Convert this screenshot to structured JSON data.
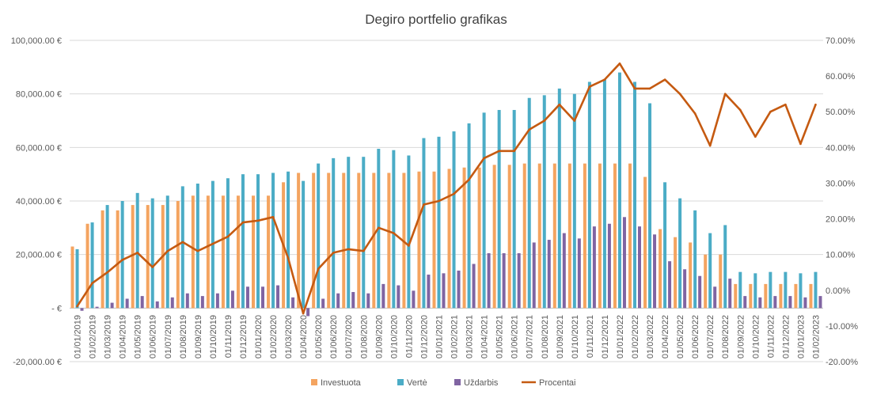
{
  "chart_data": {
    "type": "bar",
    "title": "Degiro portfelio grafikas",
    "categories": [
      "01/01/2019",
      "01/02/2019",
      "01/03/2019",
      "01/04/2019",
      "01/05/2019",
      "01/06/2019",
      "01/07/2019",
      "01/08/2019",
      "01/09/2019",
      "01/10/2019",
      "01/11/2019",
      "01/12/2019",
      "01/01/2020",
      "01/02/2020",
      "01/03/2020",
      "01/04/2020",
      "01/05/2020",
      "01/06/2020",
      "01/07/2020",
      "01/08/2020",
      "01/09/2020",
      "01/10/2020",
      "01/11/2020",
      "01/12/2020",
      "01/01/2021",
      "01/02/2021",
      "01/03/2021",
      "01/04/2021",
      "01/05/2021",
      "01/06/2021",
      "01/07/2021",
      "01/08/2021",
      "01/09/2021",
      "01/10/2021",
      "01/11/2021",
      "01/12/2021",
      "01/01/2022",
      "01/02/2022",
      "01/03/2022",
      "01/04/2022",
      "01/05/2022",
      "01/06/2022",
      "01/07/2022",
      "01/08/2022",
      "01/09/2022",
      "01/10/2022",
      "01/11/2022",
      "01/12/2022",
      "01/01/2023",
      "01/02/2023"
    ],
    "ylim": [
      -20000,
      100000
    ],
    "y_ticks": [
      -20000,
      0,
      20000,
      40000,
      60000,
      80000,
      100000
    ],
    "y_tick_labels": [
      "-20,000.00 €",
      "-  €",
      "20,000.00 €",
      "40,000.00 €",
      "60,000.00 €",
      "80,000.00 €",
      "100,000.00 €"
    ],
    "y2lim": [
      -0.2,
      0.7
    ],
    "y2_ticks": [
      -0.2,
      -0.1,
      0.0,
      0.1,
      0.2,
      0.3,
      0.4,
      0.5,
      0.6,
      0.7
    ],
    "y2_tick_labels": [
      "-20.00%",
      "-10.00%",
      "0.00%",
      "10.00%",
      "20.00%",
      "30.00%",
      "40.00%",
      "50.00%",
      "60.00%",
      "70.00%"
    ],
    "gridlines": true,
    "legend_position": "bottom",
    "series": [
      {
        "name": "Investuota",
        "type": "bar",
        "axis": "left",
        "color": "#F4A460",
        "values": [
          23000,
          31500,
          36500,
          36500,
          38500,
          38500,
          38500,
          40000,
          42000,
          42000,
          42000,
          42000,
          42000,
          42000,
          47000,
          50500,
          50500,
          50500,
          50500,
          50500,
          50500,
          50500,
          50500,
          51000,
          51000,
          52000,
          52500,
          52500,
          53500,
          53500,
          54000,
          54000,
          54000,
          54000,
          54000,
          54000,
          54000,
          54000,
          49000,
          29500,
          26500,
          24500,
          20000,
          20000,
          9000,
          9000,
          9000,
          9000,
          9000,
          9000
        ]
      },
      {
        "name": "Vertė",
        "type": "bar",
        "axis": "left",
        "color": "#4BACC6",
        "values": [
          22000,
          32000,
          38500,
          40000,
          43000,
          41000,
          42000,
          45500,
          46500,
          47500,
          48500,
          50000,
          50000,
          50500,
          51000,
          47500,
          54000,
          56000,
          56500,
          56500,
          59500,
          59000,
          57000,
          63500,
          64000,
          66000,
          69000,
          73000,
          74000,
          74000,
          78500,
          79500,
          82000,
          80000,
          84500,
          85500,
          88000,
          84500,
          76500,
          47000,
          41000,
          36500,
          28000,
          31000,
          13500,
          13000,
          13500,
          13500,
          13000,
          13500
        ]
      },
      {
        "name": "Uždarbis",
        "type": "bar",
        "axis": "left",
        "color": "#8064A2",
        "values": [
          -1000,
          500,
          2000,
          3500,
          4500,
          2500,
          4000,
          5500,
          4500,
          5500,
          6500,
          8000,
          8000,
          8500,
          4000,
          -3000,
          3500,
          5500,
          6000,
          5500,
          9000,
          8500,
          6500,
          12500,
          13000,
          14000,
          16500,
          20500,
          20500,
          20500,
          24500,
          25500,
          28000,
          26000,
          30500,
          31500,
          34000,
          30500,
          27500,
          17500,
          14500,
          12000,
          8000,
          11000,
          4500,
          4000,
          4500,
          4500,
          4000,
          4500
        ]
      },
      {
        "name": "Procentai",
        "type": "line",
        "axis": "right",
        "color": "#C55A11",
        "values": [
          -0.045,
          0.02,
          0.05,
          0.085,
          0.105,
          0.065,
          0.11,
          0.135,
          0.11,
          0.13,
          0.15,
          0.19,
          0.195,
          0.205,
          0.09,
          -0.065,
          0.06,
          0.105,
          0.115,
          0.11,
          0.175,
          0.16,
          0.125,
          0.24,
          0.25,
          0.27,
          0.31,
          0.37,
          0.39,
          0.39,
          0.45,
          0.475,
          0.52,
          0.475,
          0.57,
          0.59,
          0.635,
          0.565,
          0.565,
          0.59,
          0.55,
          0.495,
          0.405,
          0.55,
          0.505,
          0.43,
          0.5,
          0.52,
          0.41,
          0.52
        ]
      }
    ]
  }
}
